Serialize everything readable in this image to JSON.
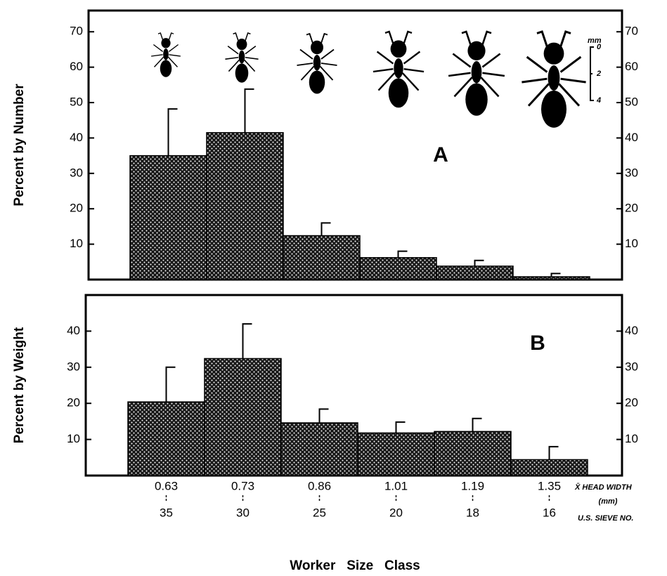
{
  "chart_data": [
    {
      "type": "bar",
      "panel_label": "A",
      "y_label": "Percent by Number",
      "color": "#1a1a1a",
      "values": [
        35,
        41.5,
        12.4,
        6.2,
        3.8,
        0.8
      ],
      "errors": [
        13.2,
        12.3,
        3.6,
        1.8,
        1.6,
        0.9
      ],
      "ylim": [
        0,
        76
      ],
      "yticks": [
        10,
        20,
        30,
        40,
        50,
        60,
        70
      ],
      "scale_bar": {
        "unit": "mm",
        "labels": [
          "0",
          "2",
          "4"
        ]
      }
    },
    {
      "type": "bar",
      "panel_label": "B",
      "y_label": "Percent by Weight",
      "color": "#1a1a1a",
      "categories": [
        "0.63",
        "0.73",
        "0.86",
        "1.01",
        "1.19",
        "1.35"
      ],
      "sieve_numbers": [
        "35",
        "30",
        "25",
        "20",
        "18",
        "16"
      ],
      "category_label": "X̄  HEAD WIDTH",
      "category_unit": "(mm)",
      "sieve_label": "U.S.  SIEVE  NO.",
      "x_label": "Worker   Size   Class",
      "values": [
        20.4,
        32.4,
        14.6,
        11.8,
        12.2,
        4.4
      ],
      "errors": [
        9.6,
        9.6,
        3.8,
        3,
        3.6,
        3.6
      ],
      "ylim": [
        0,
        50
      ],
      "yticks": [
        10,
        20,
        30,
        40
      ]
    }
  ]
}
